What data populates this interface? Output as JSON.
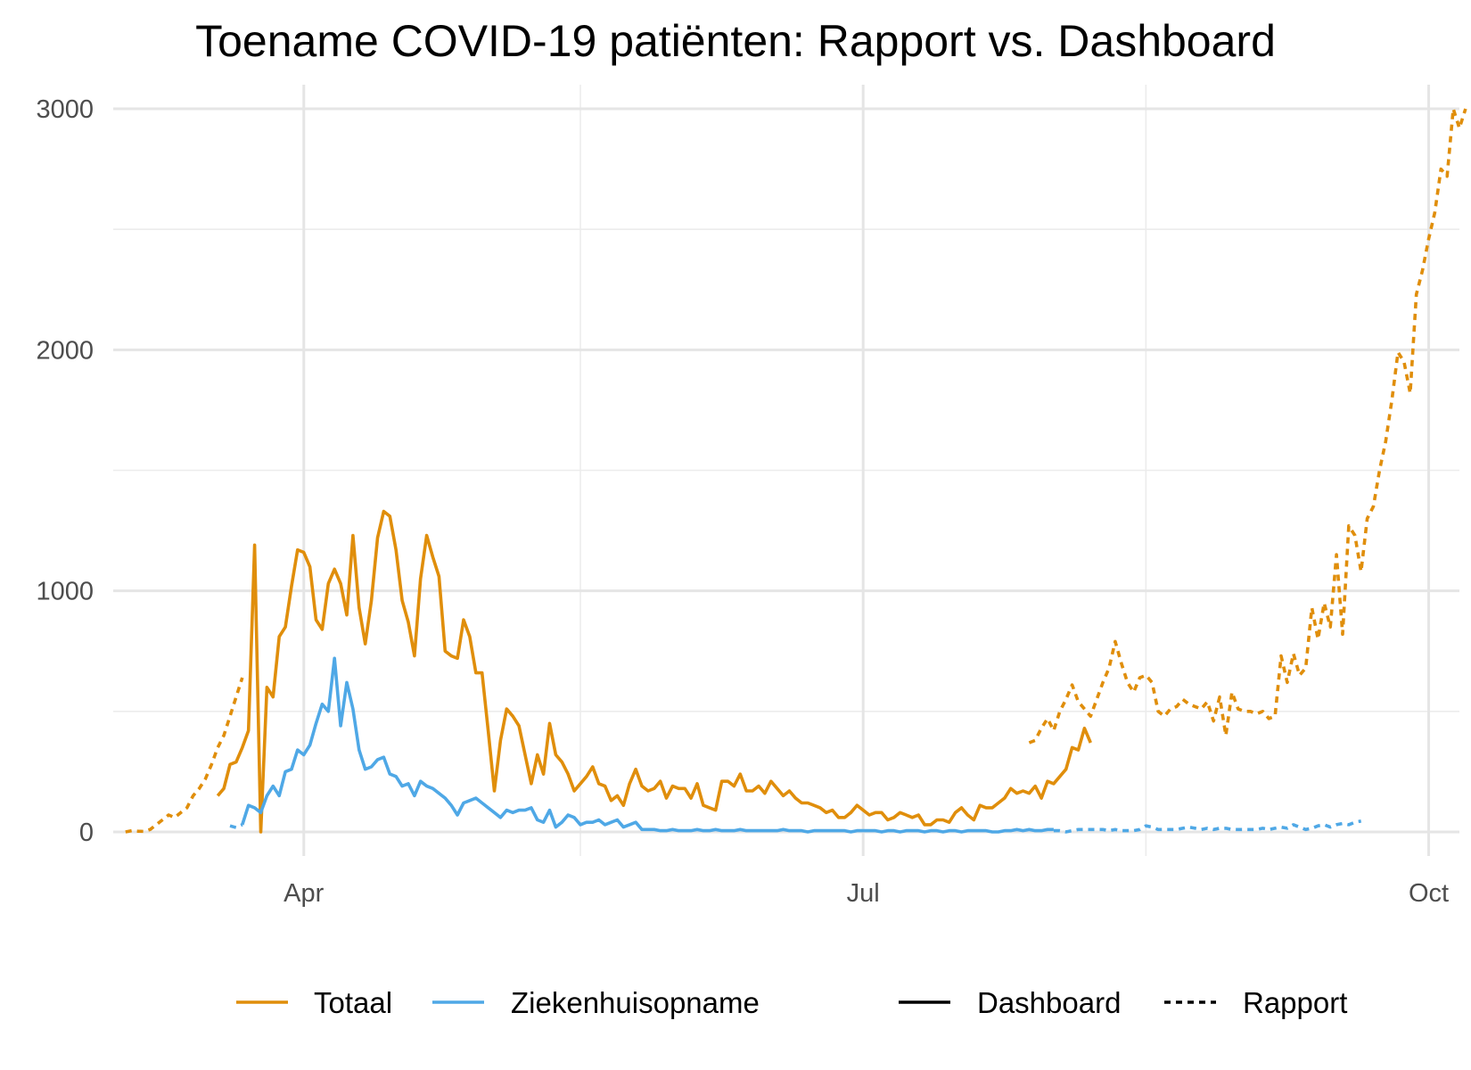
{
  "chart_data": {
    "type": "line",
    "title": "Toename COVID-19 patiënten: Rapport vs. Dashboard",
    "xlabel": "",
    "ylabel": "",
    "x_axis": {
      "type": "date",
      "range": [
        "2020-03-01",
        "2020-10-06"
      ],
      "ticks": [
        {
          "date": "2020-04-01",
          "label": "Apr"
        },
        {
          "date": "2020-07-01",
          "label": "Jul"
        },
        {
          "date": "2020-10-01",
          "label": "Oct"
        }
      ],
      "minor_grid": [
        "2020-05-16",
        "2020-08-16"
      ]
    },
    "y_axis": {
      "range": [
        -100,
        3100
      ],
      "ticks": [
        {
          "value": 0,
          "label": "0"
        },
        {
          "value": 1000,
          "label": "1000"
        },
        {
          "value": 2000,
          "label": "2000"
        },
        {
          "value": 3000,
          "label": "3000"
        }
      ],
      "minor_grid": [
        500,
        1500,
        2500
      ]
    },
    "grid": true,
    "legend_position": "bottom",
    "legend": {
      "colour": [
        {
          "label": "Totaal",
          "color": "#E08E0B"
        },
        {
          "label": "Ziekenhuisopname",
          "color": "#4FA8E6"
        }
      ],
      "linetype": [
        {
          "label": "Dashboard",
          "dash": "solid"
        },
        {
          "label": "Rapport",
          "dash": "dotted"
        }
      ]
    },
    "series": [
      {
        "name": "Totaal",
        "source": "Rapport",
        "color": "#E08E0B",
        "dash": "dotted",
        "start": "2020-03-03",
        "values": [
          0,
          5,
          3,
          2,
          10,
          30,
          50,
          70,
          60,
          80,
          100,
          150,
          180,
          220,
          280,
          350,
          400,
          480,
          560,
          640
        ]
      },
      {
        "name": "Totaal",
        "source": "Dashboard",
        "color": "#E08E0B",
        "dash": "solid",
        "start": "2020-03-18",
        "values": [
          150,
          180,
          280,
          290,
          350,
          420,
          1190,
          0,
          600,
          560,
          810,
          850,
          1020,
          1170,
          1160,
          1100,
          880,
          840,
          1030,
          1090,
          1030,
          900,
          1230,
          930,
          780,
          960,
          1220,
          1330,
          1310,
          1170,
          960,
          870,
          730,
          1050,
          1230,
          1140,
          1060,
          750,
          730,
          720,
          880,
          810,
          660,
          660,
          420,
          170,
          380,
          510,
          480,
          440,
          320,
          200,
          320,
          240,
          450,
          320,
          290,
          240,
          170,
          200,
          230,
          270,
          200,
          190,
          130,
          150,
          110,
          200,
          260,
          190,
          170,
          180,
          210,
          140,
          190,
          180,
          180,
          140,
          200,
          110,
          100,
          90,
          210,
          210,
          190,
          240,
          170,
          170,
          190,
          160,
          210,
          180,
          150,
          170,
          140,
          120,
          120,
          110,
          100,
          80,
          90,
          60,
          60,
          80,
          110,
          90,
          70,
          80,
          80,
          50,
          60,
          80,
          70,
          60,
          70,
          30,
          30,
          50,
          50,
          40,
          80,
          100,
          70,
          50,
          110,
          100,
          100,
          120,
          140,
          180,
          160,
          170,
          160,
          190,
          140,
          210,
          200,
          230,
          260,
          350,
          340,
          430,
          370
        ]
      },
      {
        "name": "Totaal",
        "source": "Rapport",
        "color": "#E08E0B",
        "dash": "dotted",
        "start": "2020-07-28",
        "values": [
          370,
          380,
          430,
          470,
          420,
          500,
          550,
          610,
          540,
          510,
          480,
          550,
          620,
          680,
          790,
          700,
          620,
          580,
          640,
          650,
          620,
          500,
          480,
          510,
          520,
          550,
          530,
          520,
          510,
          540,
          460,
          560,
          400,
          580,
          510,
          500,
          500,
          490,
          500,
          470,
          480,
          730,
          620,
          740,
          650,
          680,
          930,
          800,
          950,
          850,
          1150,
          820,
          1270,
          1230,
          1080,
          1300,
          1350,
          1500,
          1620,
          1790,
          1990,
          1950,
          1820,
          2230,
          2330,
          2460,
          2570,
          2750,
          2720,
          3000,
          2920,
          3000
        ]
      },
      {
        "name": "Ziekenhuisopname",
        "source": "Rapport",
        "color": "#4FA8E6",
        "dash": "dotted",
        "start": "2020-03-20",
        "values": [
          25,
          18,
          30
        ]
      },
      {
        "name": "Ziekenhuisopname",
        "source": "Dashboard",
        "color": "#4FA8E6",
        "dash": "solid",
        "start": "2020-03-22",
        "values": [
          30,
          110,
          100,
          80,
          150,
          190,
          150,
          250,
          260,
          340,
          320,
          360,
          450,
          530,
          500,
          720,
          440,
          620,
          510,
          340,
          260,
          270,
          300,
          310,
          240,
          230,
          190,
          200,
          150,
          210,
          190,
          180,
          160,
          140,
          110,
          70,
          120,
          130,
          140,
          120,
          100,
          80,
          60,
          90,
          80,
          90,
          90,
          100,
          50,
          40,
          90,
          20,
          40,
          70,
          60,
          30,
          40,
          40,
          50,
          30,
          40,
          50,
          20,
          30,
          40,
          10,
          10,
          10,
          5,
          5,
          10,
          5,
          5,
          5,
          10,
          5,
          5,
          10,
          5,
          5,
          5,
          10,
          5,
          5,
          5,
          5,
          5,
          5,
          10,
          5,
          5,
          5,
          0,
          5,
          5,
          5,
          5,
          5,
          5,
          0,
          5,
          5,
          5,
          5,
          0,
          5,
          5,
          0,
          5,
          5,
          5,
          0,
          5,
          5,
          0,
          5,
          5,
          0,
          5,
          5,
          5,
          5,
          0,
          0,
          5,
          5,
          10,
          5,
          10,
          5,
          5,
          10,
          10
        ]
      },
      {
        "name": "Ziekenhuisopname",
        "source": "Rapport",
        "color": "#4FA8E6",
        "dash": "dotted",
        "start": "2020-08-01",
        "values": [
          5,
          5,
          0,
          5,
          10,
          10,
          10,
          10,
          10,
          5,
          10,
          5,
          5,
          5,
          10,
          25,
          20,
          10,
          10,
          10,
          10,
          15,
          20,
          15,
          10,
          15,
          10,
          15,
          15,
          10,
          10,
          10,
          10,
          10,
          15,
          10,
          15,
          20,
          15,
          30,
          20,
          10,
          15,
          25,
          30,
          20,
          30,
          35,
          30,
          40,
          45
        ]
      }
    ]
  }
}
